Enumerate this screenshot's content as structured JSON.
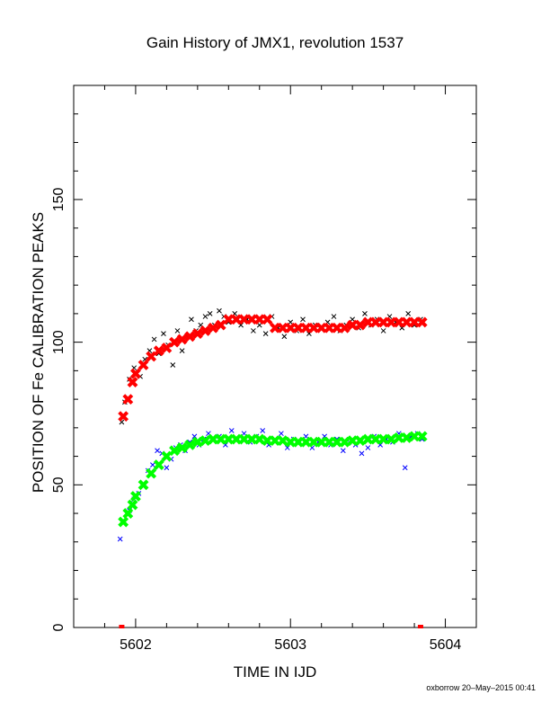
{
  "chart_data": {
    "type": "scatter",
    "title": "Gain History of JMX1, revolution 1537",
    "xlabel": "TIME IN IJD",
    "ylabel": "POSITION OF Fe CALIBRATION PEAKS",
    "xlim": [
      5601.6,
      5604.2
    ],
    "ylim": [
      0,
      190
    ],
    "xticks": [
      5602,
      5603,
      5604
    ],
    "yticks": [
      0,
      50,
      100,
      150
    ],
    "grid": false,
    "legend": "none",
    "series": [
      {
        "marker": "x",
        "color": "#000000",
        "x": [
          5601.91,
          5601.93,
          5601.96,
          5601.99,
          5602.03,
          5602.06,
          5602.09,
          5602.12,
          5602.15,
          5602.18,
          5602.21,
          5602.24,
          5602.27,
          5602.3,
          5602.33,
          5602.36,
          5602.39,
          5602.42,
          5602.45,
          5602.48,
          5602.51,
          5602.54,
          5602.57,
          5602.6,
          5602.64,
          5602.68,
          5602.72,
          5602.76,
          5602.8,
          5602.84,
          5602.88,
          5602.92,
          5602.96,
          5603.0,
          5603.04,
          5603.08,
          5603.12,
          5603.16,
          5603.2,
          5603.24,
          5603.28,
          5603.32,
          5603.36,
          5603.4,
          5603.44,
          5603.48,
          5603.52,
          5603.56,
          5603.6,
          5603.64,
          5603.68,
          5603.72,
          5603.76,
          5603.8,
          5603.84
        ],
        "y": [
          72,
          79,
          87,
          91,
          88,
          94,
          97,
          101,
          96,
          103,
          99,
          92,
          104,
          97,
          102,
          108,
          104,
          106,
          109,
          110,
          106,
          111,
          109,
          107,
          110,
          106,
          108,
          104,
          106,
          103,
          109,
          105,
          102,
          107,
          104,
          108,
          103,
          106,
          105,
          107,
          109,
          104,
          106,
          108,
          105,
          110,
          106,
          108,
          104,
          109,
          107,
          105,
          110,
          106,
          108
        ]
      },
      {
        "marker": "x",
        "color": "#ff0000",
        "x": [
          5601.92,
          5601.95,
          5601.98,
          5602.0,
          5602.05,
          5602.1,
          5602.15,
          5602.2,
          5602.25,
          5602.3,
          5602.35,
          5602.4,
          5602.45,
          5602.5,
          5602.55,
          5602.6,
          5602.65,
          5602.7,
          5602.75,
          5602.8,
          5602.85,
          5602.9,
          5602.95,
          5603.0,
          5603.05,
          5603.1,
          5603.15,
          5603.2,
          5603.25,
          5603.3,
          5603.35,
          5603.4,
          5603.45,
          5603.5,
          5603.55,
          5603.6,
          5603.65,
          5603.7,
          5603.75,
          5603.8,
          5603.85
        ],
        "y": [
          74,
          80,
          86,
          89,
          92,
          95,
          97,
          98,
          100,
          101,
          102,
          103,
          104,
          105,
          106,
          108,
          108,
          108,
          108,
          108,
          108,
          105,
          105,
          105,
          105,
          105,
          105,
          105,
          105,
          105,
          105,
          106,
          106,
          107,
          107,
          107,
          107,
          107,
          107,
          107,
          107
        ]
      },
      {
        "marker": "x",
        "color": "#0000ff",
        "x": [
          5601.9,
          5601.93,
          5601.96,
          5601.99,
          5602.02,
          5602.05,
          5602.08,
          5602.11,
          5602.14,
          5602.17,
          5602.2,
          5602.23,
          5602.26,
          5602.29,
          5602.32,
          5602.35,
          5602.38,
          5602.41,
          5602.44,
          5602.47,
          5602.5,
          5602.54,
          5602.58,
          5602.62,
          5602.66,
          5602.7,
          5602.74,
          5602.78,
          5602.82,
          5602.86,
          5602.9,
          5602.94,
          5602.98,
          5603.02,
          5603.06,
          5603.1,
          5603.14,
          5603.18,
          5603.22,
          5603.26,
          5603.3,
          5603.34,
          5603.38,
          5603.42,
          5603.46,
          5603.5,
          5603.54,
          5603.58,
          5603.62,
          5603.66,
          5603.7,
          5603.74,
          5603.78,
          5603.82,
          5603.85
        ],
        "y": [
          31,
          37,
          41,
          45,
          47,
          50,
          55,
          57,
          62,
          61,
          56,
          59,
          63,
          64,
          62,
          65,
          67,
          64,
          66,
          68,
          66,
          67,
          64,
          69,
          66,
          68,
          65,
          67,
          69,
          64,
          66,
          68,
          63,
          66,
          65,
          67,
          63,
          65,
          67,
          64,
          66,
          62,
          65,
          64,
          61,
          63,
          67,
          64,
          66,
          65,
          68,
          56,
          67,
          68,
          66
        ]
      },
      {
        "marker": "x",
        "color": "#00ff00",
        "x": [
          5601.92,
          5601.95,
          5601.98,
          5602.0,
          5602.05,
          5602.1,
          5602.15,
          5602.2,
          5602.25,
          5602.3,
          5602.35,
          5602.4,
          5602.45,
          5602.5,
          5602.55,
          5602.6,
          5602.65,
          5602.7,
          5602.75,
          5602.8,
          5602.85,
          5602.9,
          5602.95,
          5603.0,
          5603.05,
          5603.1,
          5603.15,
          5603.2,
          5603.25,
          5603.3,
          5603.35,
          5603.4,
          5603.45,
          5603.5,
          5603.55,
          5603.6,
          5603.65,
          5603.7,
          5603.75,
          5603.8,
          5603.85
        ],
        "y": [
          37,
          40,
          43,
          46,
          50,
          54,
          57,
          60,
          62,
          63,
          64,
          65,
          65.5,
          66,
          66,
          66,
          66,
          66,
          66,
          66,
          65.5,
          65.5,
          65.5,
          65,
          65,
          65,
          65,
          65,
          65,
          65,
          65,
          65.5,
          65.5,
          66,
          66,
          66,
          66,
          66.5,
          66.5,
          67,
          67
        ]
      }
    ],
    "x_markers": [
      {
        "x": 5601.91,
        "color": "#ff0000"
      },
      {
        "x": 5603.84,
        "color": "#ff0000"
      }
    ]
  },
  "footer": {
    "credit": "oxborrow 20–May–2015 00:41"
  }
}
